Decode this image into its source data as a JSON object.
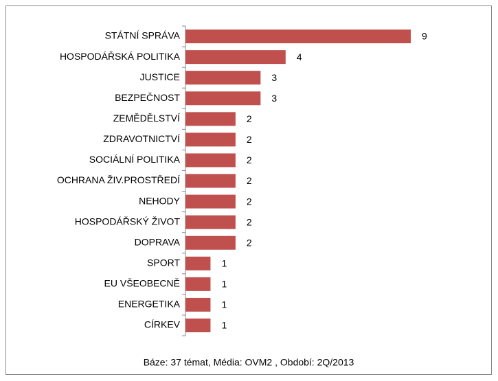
{
  "chart_data": {
    "type": "bar",
    "orientation": "horizontal",
    "categories": [
      "STÁTNÍ SPRÁVA",
      "HOSPODÁŘSKÁ POLITIKA",
      "JUSTICE",
      "BEZPEČNOST",
      "ZEMĚDĚLSTVÍ",
      "ZDRAVOTNICTVÍ",
      "SOCIÁLNÍ POLITIKA",
      "OCHRANA ŽIV.PROSTŘEDÍ",
      "NEHODY",
      "HOSPODÁŘSKÝ ŽIVOT",
      "DOPRAVA",
      "SPORT",
      "EU VŠEOBECNĚ",
      "ENERGETIKA",
      "CÍRKEV"
    ],
    "values": [
      9,
      4,
      3,
      3,
      2,
      2,
      2,
      2,
      2,
      2,
      2,
      1,
      1,
      1,
      1
    ],
    "color": "#c0504d",
    "footnote": "Báze: 37 témat, Média: OVM2 , Období: 2Q/2013"
  }
}
